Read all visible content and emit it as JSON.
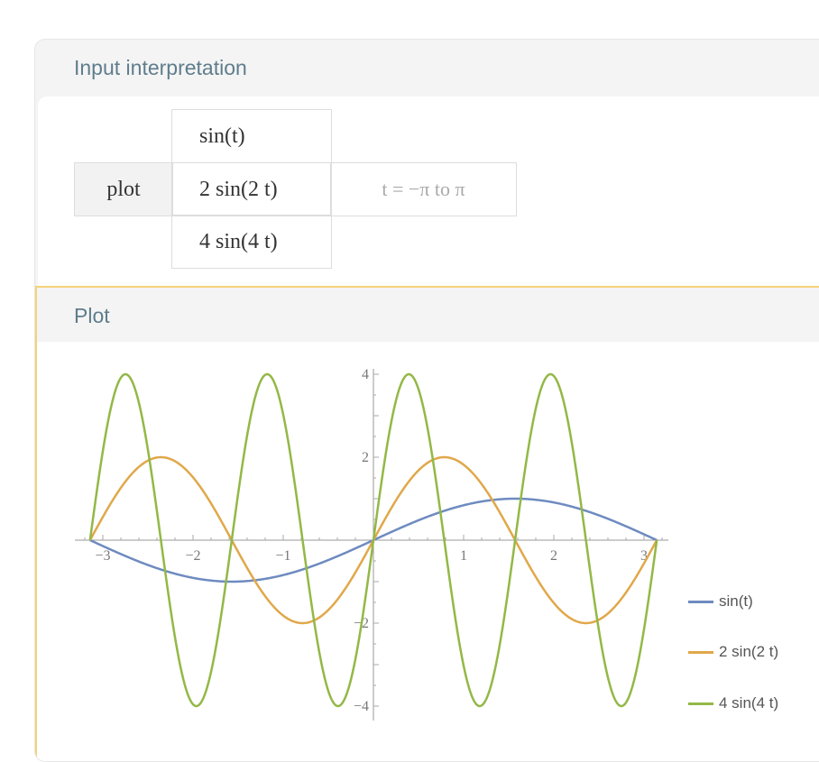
{
  "pods": [
    {
      "title": "Input interpretation",
      "table": {
        "command": "plot",
        "functions": [
          "sin(t)",
          "2 sin(2 t)",
          "4 sin(4 t)"
        ],
        "range": "t = −π to π"
      }
    },
    {
      "title": "Plot"
    }
  ],
  "chart_data": {
    "type": "line",
    "xlim": [
      -3.14159,
      3.14159
    ],
    "ylim": [
      -4,
      4
    ],
    "x_ticks": [
      "-3",
      "-2",
      "-1",
      "1",
      "2",
      "3"
    ],
    "y_ticks": [
      "4",
      "2",
      "-2",
      "-4"
    ],
    "grid": false,
    "legend_placement": "bottom-right",
    "series": [
      {
        "name": "sin(t)",
        "amplitude": 1,
        "frequency": 1,
        "color": "#6e8bc0"
      },
      {
        "name": "2 sin(2 t)",
        "amplitude": 2,
        "frequency": 2,
        "color": "#e0a84a"
      },
      {
        "name": "4 sin(4 t)",
        "amplitude": 4,
        "frequency": 4,
        "color": "#93b846"
      }
    ]
  }
}
